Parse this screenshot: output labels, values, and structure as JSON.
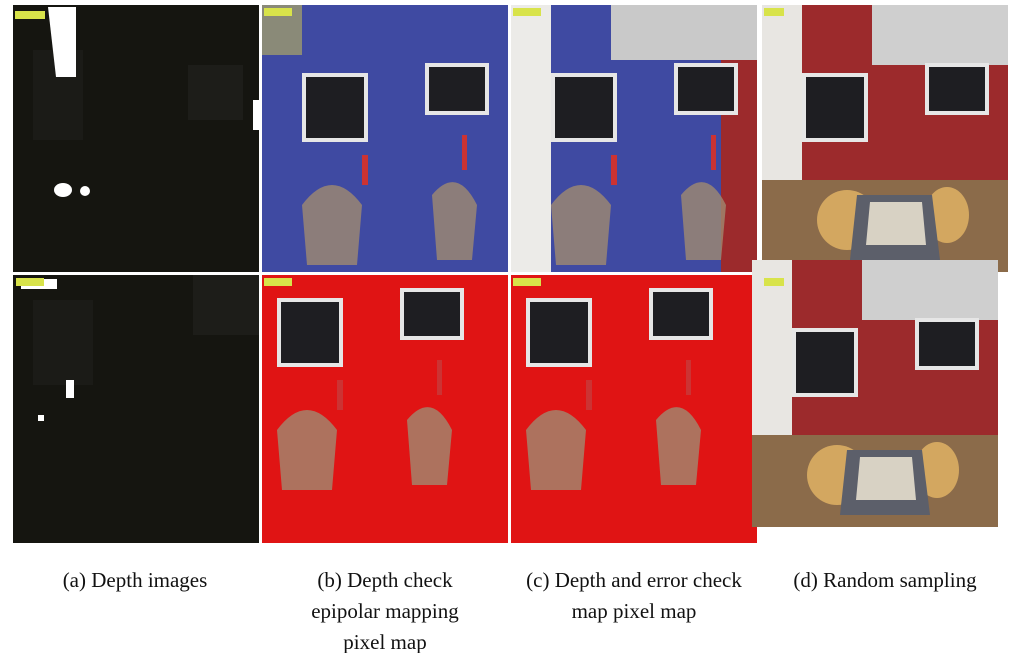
{
  "panels": [
    {
      "caption_lines": [
        "(a) Depth images"
      ]
    },
    {
      "caption_lines": [
        "(b) Depth check",
        "epipolar mapping",
        "pixel map"
      ]
    },
    {
      "caption_lines": [
        "(c) Depth and error check",
        "map pixel map"
      ]
    },
    {
      "caption_lines": [
        "(d) Random sampling"
      ]
    }
  ]
}
